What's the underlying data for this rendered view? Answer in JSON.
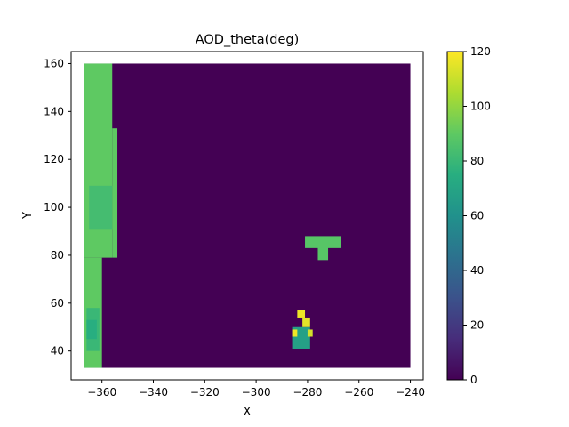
{
  "chart_data": {
    "type": "heatmap",
    "title": "AOD_theta(deg)",
    "xlabel": "X",
    "ylabel": "Y",
    "xlim": [
      -372,
      -235
    ],
    "ylim": [
      28,
      165
    ],
    "x_ticks": [
      -360,
      -340,
      -320,
      -300,
      -280,
      -260,
      -240
    ],
    "y_ticks": [
      40,
      60,
      80,
      100,
      120,
      140,
      160
    ],
    "x_tick_labels": [
      "−360",
      "−340",
      "−320",
      "−300",
      "−280",
      "−260",
      "−240"
    ],
    "y_tick_labels": [
      "40",
      "60",
      "80",
      "100",
      "120",
      "140",
      "160"
    ],
    "grid": false,
    "colormap": "viridis",
    "colorbar": {
      "range": [
        0,
        120
      ],
      "ticks": [
        0,
        20,
        40,
        60,
        80,
        100,
        120
      ],
      "tick_labels": [
        "0",
        "20",
        "40",
        "60",
        "80",
        "100",
        "120"
      ]
    },
    "background_value": 0,
    "data_extent": {
      "x": [
        -367,
        -240
      ],
      "y": [
        33,
        160
      ]
    },
    "regions": [
      {
        "name": "left strip upper",
        "x": [
          -367,
          -356
        ],
        "y": [
          79,
          160
        ],
        "value": 90
      },
      {
        "name": "left notch",
        "x": [
          -356,
          -354
        ],
        "y": [
          79,
          133
        ],
        "value": 90
      },
      {
        "name": "left strip lower",
        "x": [
          -367,
          -360
        ],
        "y": [
          33,
          79
        ],
        "value": 90
      },
      {
        "name": "teal band",
        "x": [
          -365,
          -356
        ],
        "y": [
          91,
          109
        ],
        "value": 83
      },
      {
        "name": "lower-left patch",
        "x": [
          -366,
          -361
        ],
        "y": [
          40,
          58
        ],
        "value": 80
      },
      {
        "name": "lower-left patch core",
        "x": [
          -366,
          -362
        ],
        "y": [
          45,
          53
        ],
        "value": 75
      },
      {
        "name": "cluster arm",
        "x": [
          -281,
          -267
        ],
        "y": [
          83,
          88
        ],
        "value": 88
      },
      {
        "name": "cluster stem",
        "x": [
          -276,
          -272
        ],
        "y": [
          78,
          84
        ],
        "value": 88
      },
      {
        "name": "lower cluster",
        "x": [
          -286,
          -279
        ],
        "y": [
          41,
          50
        ],
        "value": 68
      },
      {
        "name": "lower cluster hot 1",
        "x": [
          -284,
          -281
        ],
        "y": [
          54,
          57
        ],
        "value": 117
      },
      {
        "name": "lower cluster hot 2",
        "x": [
          -282,
          -279
        ],
        "y": [
          50,
          54
        ],
        "value": 115
      },
      {
        "name": "lower cluster hot 3",
        "x": [
          -286,
          -284
        ],
        "y": [
          46,
          49
        ],
        "value": 118
      },
      {
        "name": "lower cluster hot 4",
        "x": [
          -280,
          -278
        ],
        "y": [
          46,
          49
        ],
        "value": 112
      }
    ]
  }
}
